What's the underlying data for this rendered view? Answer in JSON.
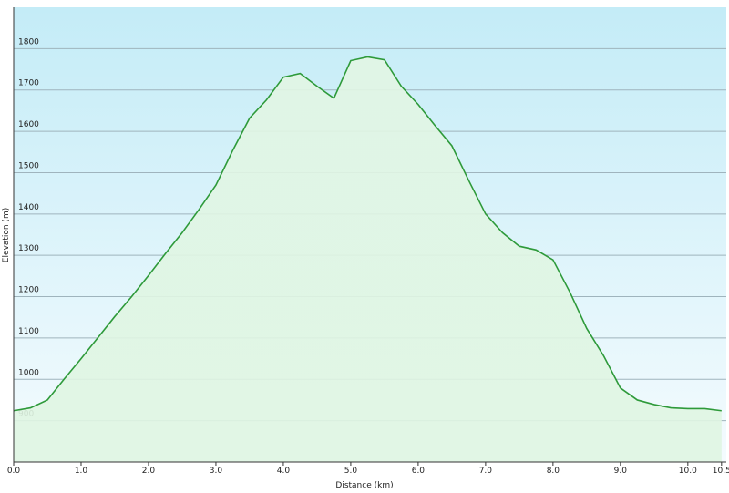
{
  "chart_data": {
    "type": "area",
    "x_label": "Distance  (km)",
    "y_label": "Elevation (m)",
    "x": [
      0,
      0.25,
      0.5,
      0.75,
      1.0,
      1.25,
      1.5,
      1.75,
      2.0,
      2.25,
      2.5,
      2.75,
      3.0,
      3.25,
      3.5,
      3.75,
      4.0,
      4.25,
      4.5,
      4.75,
      5.0,
      5.25,
      5.5,
      5.75,
      6.0,
      6.25,
      6.5,
      6.75,
      7.0,
      7.25,
      7.5,
      7.75,
      8.0,
      8.25,
      8.5,
      8.75,
      9.0,
      9.25,
      9.5,
      9.75,
      10.0,
      10.25,
      10.5
    ],
    "series": [
      {
        "name": "Elevation",
        "color": "#2e9a3a",
        "values": [
          924,
          931,
          950,
          1001,
          1050,
          1101,
          1152,
          1200,
          1251,
          1304,
          1355,
          1411,
          1470,
          1554,
          1632,
          1676,
          1731,
          1740,
          1709,
          1680,
          1771,
          1780,
          1773,
          1709,
          1665,
          1614,
          1565,
          1481,
          1400,
          1355,
          1322,
          1313,
          1289,
          1211,
          1123,
          1057,
          979,
          950,
          939,
          931,
          929,
          929,
          924
        ]
      }
    ],
    "xlim": [
      0,
      10.57
    ],
    "ylim": [
      800,
      1900
    ],
    "xticks": [
      {
        "value": 0,
        "label": "0.0"
      },
      {
        "value": 1,
        "label": "1.0"
      },
      {
        "value": 2,
        "label": "2.0"
      },
      {
        "value": 3,
        "label": "3.0"
      },
      {
        "value": 4,
        "label": "4.0"
      },
      {
        "value": 5,
        "label": "5.0"
      },
      {
        "value": 6,
        "label": "6.0"
      },
      {
        "value": 7,
        "label": "7.0"
      },
      {
        "value": 8,
        "label": "8.0"
      },
      {
        "value": 9,
        "label": "9.0"
      },
      {
        "value": 10,
        "label": "10.0"
      },
      10.5
    ],
    "yticks": [
      900,
      1000,
      1100,
      1200,
      1300,
      1400,
      1500,
      1600,
      1700,
      1800
    ],
    "grid": true
  }
}
